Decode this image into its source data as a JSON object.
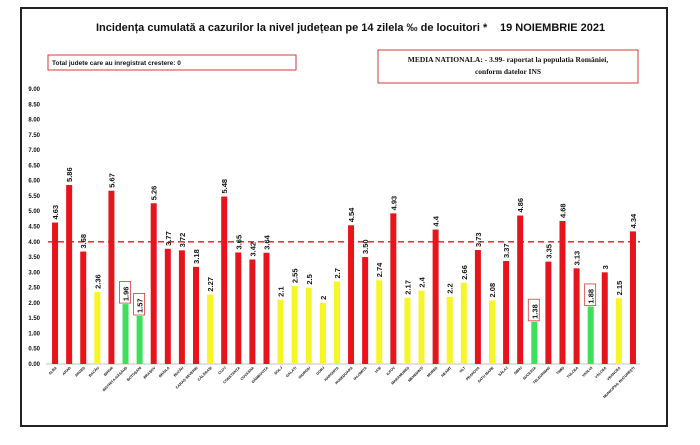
{
  "chart_data": {
    "type": "bar",
    "title": "Incidența cumulată a cazurilor la nivel județean pe 14 zilela ‰ de locuitori *",
    "date": "19 NOIEMBRIE 2021",
    "info_box": "Total judete care au inregistrat crestere: 0",
    "national_note_line1": "MEDIA NATIONALA: - 3.99- raportat la populatia României,",
    "national_note_line2": "conform datelor INS",
    "reference_line": 4.0,
    "ylim": [
      0,
      9
    ],
    "yticks": [
      "0.00",
      "0.50",
      "1.00",
      "1.50",
      "2.00",
      "2.50",
      "3.00",
      "3.50",
      "4.00",
      "4.50",
      "5.00",
      "5.50",
      "6.00",
      "6.50",
      "7.00",
      "7.50",
      "8.00",
      "8.50",
      "9.00"
    ],
    "grid": false,
    "colors": {
      "red": "#e8141b",
      "yellow": "#f5f528",
      "green": "#3ce05a",
      "refline": "#e8141b"
    },
    "categories": [
      "ALBA",
      "ARAD",
      "ARGEȘ",
      "BACĂU",
      "BIHOR",
      "BISTRIȚA-NĂSĂUD",
      "BOTOȘANI",
      "BRAȘOV",
      "BRĂILA",
      "BUZĂU",
      "CARAȘ-SEVERIN",
      "CĂLĂRAȘI",
      "CLUJ",
      "CONSTANȚA",
      "COVASNA",
      "DÂMBOVIȚA",
      "DOLJ",
      "GALAȚI",
      "GIURGIU",
      "GORJ",
      "HARGHITA",
      "HUNEDOARA",
      "IALOMIȚA",
      "IAȘI",
      "ILFOV",
      "MARAMUREȘ",
      "MEHEDINȚI",
      "MUREȘ",
      "NEAMȚ",
      "OLT",
      "PRAHOVA",
      "SATU MARE",
      "SĂLAJ",
      "SIBIU",
      "SUCEAVA",
      "TELEORMAN",
      "TIMIȘ",
      "TULCEA",
      "VASLUI",
      "VÂLCEA",
      "VRANCEA",
      "MUNICIPIUL BUCUREȘTI"
    ],
    "values": [
      4.63,
      5.86,
      3.68,
      2.36,
      5.67,
      1.96,
      1.57,
      5.26,
      3.77,
      3.72,
      3.18,
      2.27,
      5.48,
      3.65,
      3.42,
      3.64,
      2.1,
      2.55,
      2.5,
      2.0,
      2.7,
      4.54,
      3.5,
      2.74,
      4.93,
      2.17,
      2.4,
      4.4,
      2.2,
      2.66,
      3.73,
      2.08,
      3.37,
      4.86,
      1.38,
      3.35,
      4.68,
      3.13,
      1.88,
      3.0,
      2.15,
      4.34
    ],
    "labels": [
      "4.63",
      "5.86",
      "3.68",
      "2.36",
      "5.67",
      "1.96",
      "1.57",
      "5.26",
      "3.77",
      "3.72",
      "3.18",
      "2.27",
      "5.48",
      "3.65",
      "3.42",
      "3.64",
      "2.1",
      "2.55",
      "2.5",
      "2",
      "2.7",
      "4.54",
      "3.50",
      "2.74",
      "4.93",
      "2.17",
      "2.4",
      "4.4",
      "2.2",
      "2.66",
      "3.73",
      "2.08",
      "3.37",
      "4.86",
      "1.38",
      "3.35",
      "4.68",
      "3.13",
      "1.88",
      "3",
      "2.15",
      "4.34"
    ],
    "bar_colors": [
      "red",
      "red",
      "red",
      "yellow",
      "red",
      "green",
      "green",
      "red",
      "red",
      "red",
      "red",
      "yellow",
      "red",
      "red",
      "red",
      "red",
      "yellow",
      "yellow",
      "yellow",
      "yellow",
      "yellow",
      "red",
      "red",
      "yellow",
      "red",
      "yellow",
      "yellow",
      "red",
      "yellow",
      "yellow",
      "red",
      "yellow",
      "red",
      "red",
      "green",
      "red",
      "red",
      "red",
      "green",
      "red",
      "yellow",
      "red"
    ],
    "boxed_labels": [
      "1.96",
      "1.57",
      "1.38",
      "1.88"
    ]
  }
}
